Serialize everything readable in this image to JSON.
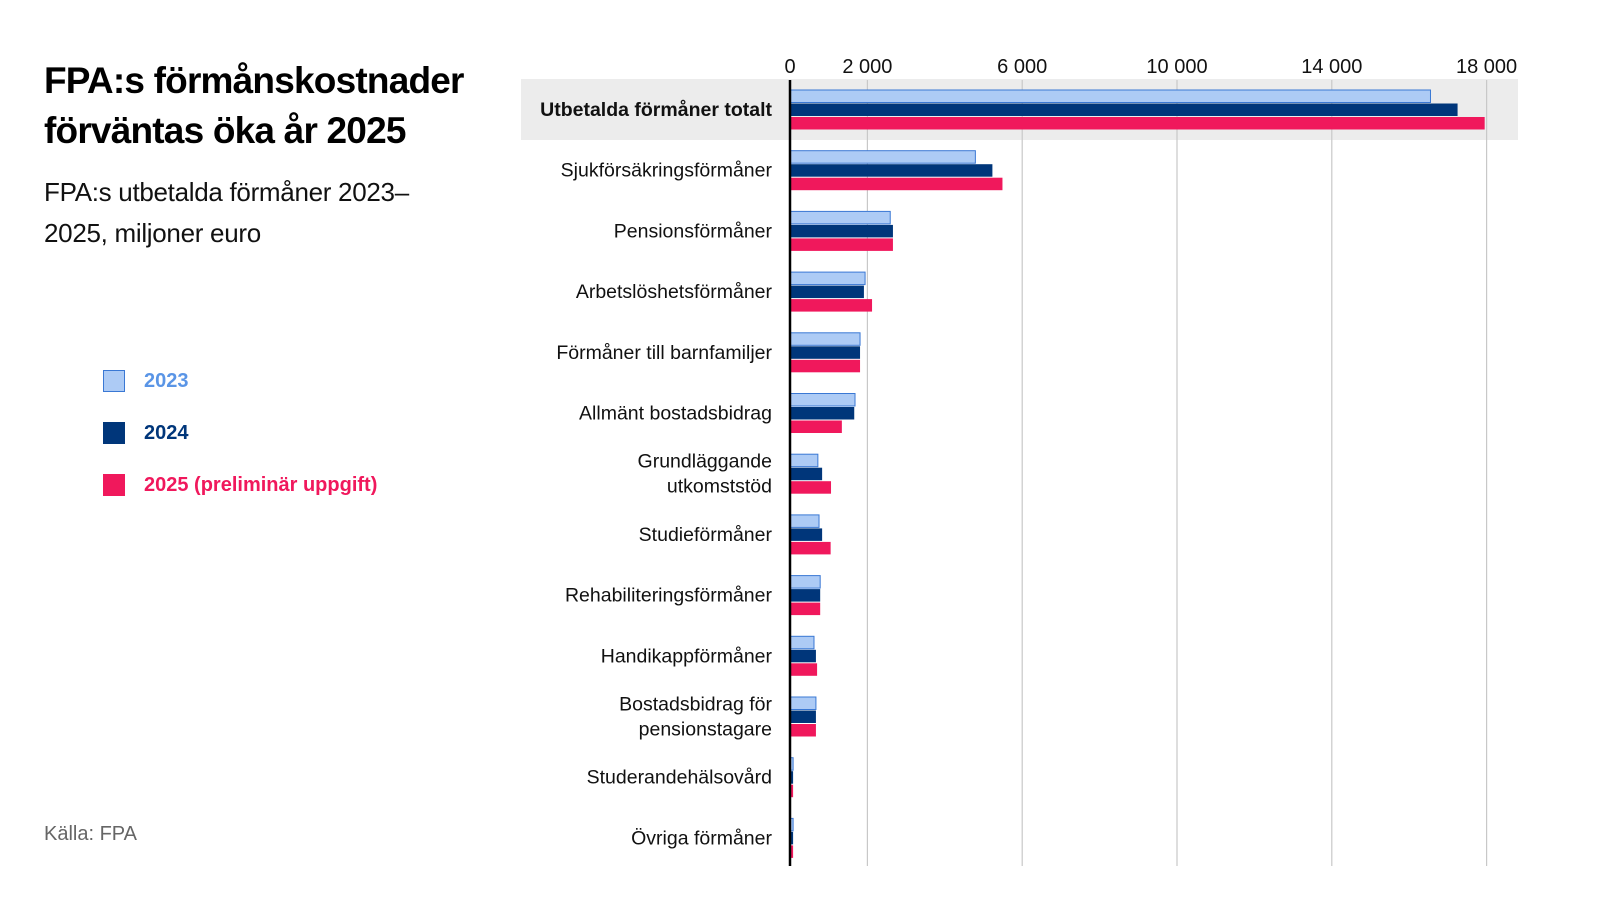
{
  "title": "FPA:s förmånskostnader förväntas öka år 2025",
  "subtitle": "FPA:s utbetalda förmåner 2023–2025, miljoner euro",
  "source": "Källa: FPA",
  "colors": {
    "2023": "#adcbf5",
    "2023_border": "#3a78d4",
    "2024": "#00367a",
    "2025": "#f0185c",
    "highlight_bg": "#ececec"
  },
  "legend": [
    {
      "label": "2023",
      "color": "#5a95e6"
    },
    {
      "label": "2024",
      "color": "#00367a"
    },
    {
      "label": "2025 (preliminär uppgift)",
      "color": "#f0185c"
    }
  ],
  "chart_data": {
    "type": "bar",
    "orientation": "horizontal",
    "title": "FPA:s förmånskostnader förväntas öka år 2025",
    "subtitle": "FPA:s utbetalda förmåner 2023–2025, miljoner euro",
    "xlim": [
      0,
      18000
    ],
    "x_ticks": [
      0,
      2000,
      6000,
      10000,
      14000,
      18000
    ],
    "x_tick_labels": [
      "0",
      "2 000",
      "6 000",
      "10 000",
      "14 000",
      "18 000"
    ],
    "grid": true,
    "legend_placement": "left",
    "categories": [
      "Utbetalda förmåner totalt",
      "Sjukförsäkringsförmåner",
      "Pensionsförmåner",
      "Arbetslöshetsförmåner",
      "Förmåner till barnfamiljer",
      "Allmänt bostadsbidrag",
      "Grundläggande utkomststöd",
      "Studieförmåner",
      "Rehabiliteringsförmåner",
      "Handikappförmåner",
      "Bostadsbidrag för pensionstagare",
      "Studerandehälsovård",
      "Övriga förmåner"
    ],
    "category_lines": [
      [
        "Utbetalda förmåner totalt"
      ],
      [
        "Sjukförsäkringsförmåner"
      ],
      [
        "Pensionsförmåner"
      ],
      [
        "Arbetslöshetsförmåner"
      ],
      [
        "Förmåner till barnfamiljer"
      ],
      [
        "Allmänt bostadsbidrag"
      ],
      [
        "Grundläggande",
        "utkomststöd"
      ],
      [
        "Studieförmåner"
      ],
      [
        "Rehabiliteringsförmåner"
      ],
      [
        "Handikappförmåner"
      ],
      [
        "Bostadsbidrag för",
        "pensionstagare"
      ],
      [
        "Studerandehälsovård"
      ],
      [
        "Övriga förmåner"
      ]
    ],
    "highlighted_category": "Utbetalda förmåner totalt",
    "series": [
      {
        "name": "2023",
        "values": [
          16550,
          4790,
          2590,
          1940,
          1810,
          1680,
          720,
          750,
          780,
          620,
          670,
          80,
          80
        ]
      },
      {
        "name": "2024",
        "values": [
          17250,
          5230,
          2660,
          1910,
          1810,
          1660,
          830,
          830,
          780,
          670,
          670,
          80,
          80
        ]
      },
      {
        "name": "2025 (preliminär uppgift)",
        "values": [
          17950,
          5490,
          2660,
          2120,
          1810,
          1340,
          1060,
          1050,
          780,
          700,
          670,
          80,
          80
        ]
      }
    ]
  }
}
